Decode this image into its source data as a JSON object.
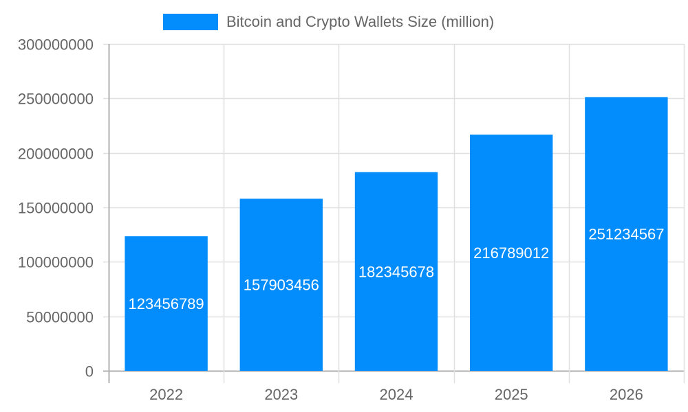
{
  "chart_data": {
    "type": "bar",
    "title": "",
    "legend": [
      {
        "label": "Bitcoin and Crypto Wallets Size (million)",
        "color": "#038cfc"
      }
    ],
    "legend_position": "top",
    "categories": [
      "2022",
      "2023",
      "2024",
      "2025",
      "2026"
    ],
    "series": [
      {
        "name": "Bitcoin and Crypto Wallets Size (million)",
        "values": [
          123456789,
          157903456,
          182345678,
          216789012,
          251234567
        ],
        "color": "#038cfc"
      }
    ],
    "data_labels": [
      "123456789",
      "157903456",
      "182345678",
      "216789012",
      "251234567"
    ],
    "xlabel": "",
    "ylabel": "",
    "ylim": [
      0,
      300000000
    ],
    "yticks": [
      "0",
      "50000000",
      "100000000",
      "150000000",
      "200000000",
      "250000000",
      "300000000"
    ],
    "grid": true
  }
}
